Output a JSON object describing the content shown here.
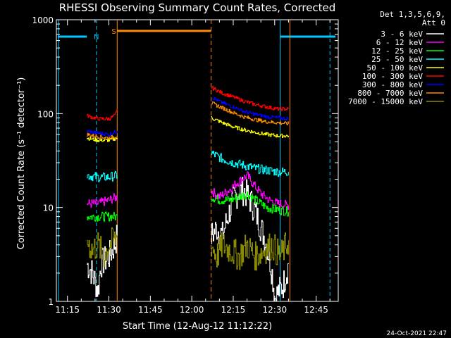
{
  "chart_data": {
    "type": "line",
    "title": "RHESSI Observing Summary Count Rates, Corrected",
    "ylabel": "Corrected Count Rate (s⁻¹ detector⁻¹)",
    "xlabel": "Start Time (12-Aug-12 11:12:22)",
    "ylog": true,
    "ylim": [
      1,
      1000
    ],
    "xlim_min": [
      671,
      773
    ],
    "x_ticks": [
      {
        "t": 675,
        "label": "11:15"
      },
      {
        "t": 690,
        "label": "11:30"
      },
      {
        "t": 705,
        "label": "11:45"
      },
      {
        "t": 720,
        "label": "12:00"
      },
      {
        "t": 735,
        "label": "12:15"
      },
      {
        "t": 750,
        "label": "12:30"
      },
      {
        "t": 765,
        "label": "12:45"
      }
    ],
    "y_ticks": [
      {
        "v": 1,
        "label": "1"
      },
      {
        "v": 10,
        "label": "10"
      },
      {
        "v": 100,
        "label": "100"
      },
      {
        "v": 1000,
        "label": "1000"
      }
    ],
    "legend": {
      "header1": "Det 1,3,5,6,9,",
      "header2": "Att 0",
      "placement": "right"
    },
    "flags": [
      {
        "label": "N",
        "color": "#00c8ff"
      },
      {
        "label": "S",
        "color": "#ff8c00"
      }
    ],
    "series": [
      {
        "name": "3 - 6 keV",
        "color": "#ffffff",
        "seg1": [
          [
            682,
            2.5
          ],
          [
            684,
            2
          ],
          [
            686,
            1.3
          ],
          [
            687,
            2.5
          ],
          [
            690,
            3
          ],
          [
            692,
            4
          ],
          [
            693,
            5
          ]
        ],
        "seg2": [
          [
            727,
            5
          ],
          [
            729,
            6
          ],
          [
            731,
            5
          ],
          [
            733,
            8
          ],
          [
            735,
            12
          ],
          [
            737,
            15
          ],
          [
            739,
            15
          ],
          [
            741,
            12
          ],
          [
            743,
            9
          ],
          [
            745,
            6
          ],
          [
            746,
            5
          ],
          [
            748,
            3
          ],
          [
            749,
            2
          ],
          [
            750,
            1.1
          ],
          [
            753,
            1.5
          ],
          [
            755,
            2.5
          ]
        ]
      },
      {
        "name": "6 - 12 keV",
        "color": "#ff00ff",
        "seg1": [
          [
            682,
            11
          ],
          [
            686,
            11
          ],
          [
            690,
            12
          ],
          [
            693,
            13
          ]
        ],
        "seg2": [
          [
            727,
            15
          ],
          [
            730,
            13
          ],
          [
            733,
            15
          ],
          [
            736,
            18
          ],
          [
            738,
            20
          ],
          [
            740,
            22
          ],
          [
            742,
            18
          ],
          [
            745,
            14
          ],
          [
            748,
            12
          ],
          [
            751,
            11
          ],
          [
            755,
            10.5
          ]
        ]
      },
      {
        "name": "12 - 25 keV",
        "color": "#00ff00",
        "seg1": [
          [
            682,
            8
          ],
          [
            686,
            8
          ],
          [
            690,
            8
          ],
          [
            693,
            8
          ]
        ],
        "seg2": [
          [
            727,
            13
          ],
          [
            730,
            12
          ],
          [
            734,
            12
          ],
          [
            737,
            13
          ],
          [
            740,
            14
          ],
          [
            743,
            12
          ],
          [
            747,
            10
          ],
          [
            751,
            9.5
          ],
          [
            755,
            9
          ]
        ]
      },
      {
        "name": "25 - 50 keV",
        "color": "#00ffff",
        "seg1": [
          [
            682,
            22
          ],
          [
            686,
            21
          ],
          [
            690,
            21
          ],
          [
            693,
            22
          ]
        ],
        "seg2": [
          [
            727,
            38
          ],
          [
            731,
            33
          ],
          [
            735,
            30
          ],
          [
            739,
            28
          ],
          [
            743,
            26
          ],
          [
            747,
            25
          ],
          [
            751,
            24
          ],
          [
            755,
            24
          ]
        ]
      },
      {
        "name": "50 - 100 keV",
        "color": "#ffff00",
        "seg1": [
          [
            682,
            55
          ],
          [
            686,
            52
          ],
          [
            690,
            52
          ],
          [
            693,
            55
          ]
        ],
        "seg2": [
          [
            727,
            90
          ],
          [
            731,
            80
          ],
          [
            735,
            72
          ],
          [
            739,
            67
          ],
          [
            743,
            63
          ],
          [
            747,
            60
          ],
          [
            751,
            58
          ],
          [
            755,
            58
          ]
        ]
      },
      {
        "name": "100 - 300 keV",
        "color": "#ff0000",
        "seg1": [
          [
            682,
            95
          ],
          [
            686,
            88
          ],
          [
            690,
            88
          ],
          [
            692,
            95
          ],
          [
            693,
            110
          ]
        ],
        "seg2": [
          [
            727,
            190
          ],
          [
            731,
            165
          ],
          [
            735,
            150
          ],
          [
            739,
            135
          ],
          [
            743,
            125
          ],
          [
            747,
            118
          ],
          [
            751,
            112
          ],
          [
            755,
            112
          ]
        ]
      },
      {
        "name": "300 - 800 keV",
        "color": "#0000ff",
        "seg1": [
          [
            682,
            65
          ],
          [
            686,
            62
          ],
          [
            690,
            60
          ],
          [
            693,
            65
          ]
        ],
        "seg2": [
          [
            727,
            150
          ],
          [
            731,
            130
          ],
          [
            735,
            118
          ],
          [
            739,
            105
          ],
          [
            743,
            98
          ],
          [
            747,
            93
          ],
          [
            751,
            90
          ],
          [
            755,
            88
          ]
        ]
      },
      {
        "name": "800 - 7000 keV",
        "color": "#ff8c00",
        "seg1": [
          [
            682,
            60
          ],
          [
            686,
            57
          ],
          [
            690,
            55
          ],
          [
            693,
            58
          ]
        ],
        "seg2": [
          [
            727,
            130
          ],
          [
            731,
            115
          ],
          [
            735,
            102
          ],
          [
            739,
            92
          ],
          [
            743,
            86
          ],
          [
            747,
            82
          ],
          [
            751,
            80
          ],
          [
            755,
            78
          ]
        ]
      },
      {
        "name": "7000 - 15000 keV",
        "color": "#8b8b00",
        "seg1": [
          [
            682,
            4.5
          ],
          [
            684,
            3.5
          ],
          [
            686,
            4
          ],
          [
            688,
            3
          ],
          [
            690,
            4
          ],
          [
            692,
            4.5
          ],
          [
            693,
            5
          ]
        ],
        "seg2": [
          [
            727,
            4
          ],
          [
            729,
            3
          ],
          [
            731,
            4
          ],
          [
            734,
            3.5
          ],
          [
            737,
            3
          ],
          [
            740,
            4
          ],
          [
            743,
            3
          ],
          [
            746,
            3.5
          ],
          [
            749,
            4
          ],
          [
            752,
            3
          ],
          [
            755,
            4.5
          ]
        ]
      }
    ]
  },
  "footer": {
    "date": "24-Oct-2021 22:47"
  }
}
